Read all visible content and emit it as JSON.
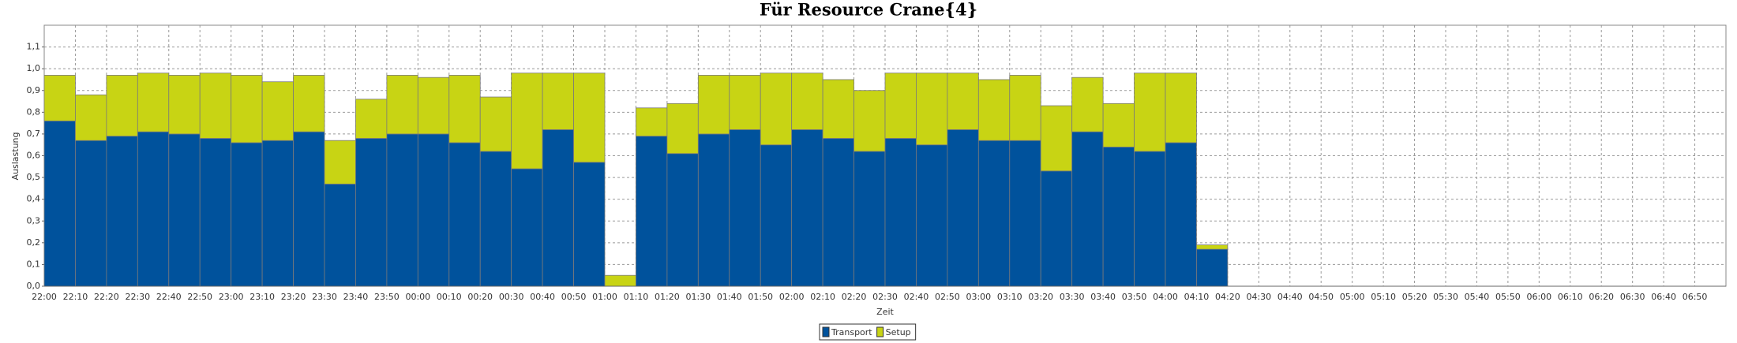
{
  "chart_data": {
    "type": "stacked_bar",
    "title": "Für Resource Crane{4}",
    "x_label": "Zeit",
    "y_label": "Auslastung",
    "categories": [
      "22:00",
      "22:10",
      "22:20",
      "22:30",
      "22:40",
      "22:50",
      "23:00",
      "23:10",
      "23:20",
      "23:30",
      "23:40",
      "23:50",
      "00:00",
      "00:10",
      "00:20",
      "00:30",
      "00:40",
      "00:50",
      "01:00",
      "01:10",
      "01:20",
      "01:30",
      "01:40",
      "01:50",
      "02:00",
      "02:10",
      "02:20",
      "02:30",
      "02:40",
      "02:50",
      "03:00",
      "03:10",
      "03:20",
      "03:30",
      "03:40",
      "03:50",
      "04:00",
      "04:10",
      "04:20",
      "04:30",
      "04:40",
      "04:50",
      "05:00",
      "05:10",
      "05:20",
      "05:30",
      "05:40",
      "05:50",
      "06:00",
      "06:10",
      "06:20",
      "06:30",
      "06:40",
      "06:50"
    ],
    "series": [
      {
        "name": "Transport",
        "color": "#00529c",
        "values": [
          0.76,
          0.67,
          0.69,
          0.71,
          0.7,
          0.68,
          0.66,
          0.67,
          0.71,
          0.47,
          0.68,
          0.7,
          0.7,
          0.66,
          0.62,
          0.54,
          0.72,
          0.57,
          0,
          0.69,
          0.61,
          0.7,
          0.72,
          0.65,
          0.72,
          0.68,
          0.62,
          0.68,
          0.65,
          0.72,
          0.67,
          0.67,
          0.53,
          0.71,
          0.64,
          0.62,
          0.66,
          0.17,
          null,
          null,
          null,
          null,
          null,
          null,
          null,
          null,
          null,
          null,
          null,
          null,
          null,
          null,
          null,
          null
        ]
      },
      {
        "name": "Setup",
        "color": "#c8d414",
        "values": [
          0.21,
          0.21,
          0.28,
          0.27,
          0.27,
          0.3,
          0.31,
          0.27,
          0.26,
          0.2,
          0.18,
          0.27,
          0.26,
          0.31,
          0.25,
          0.44,
          0.26,
          0.41,
          0.05,
          0.13,
          0.23,
          0.27,
          0.25,
          0.33,
          0.26,
          0.27,
          0.28,
          0.3,
          0.33,
          0.26,
          0.28,
          0.3,
          0.3,
          0.25,
          0.2,
          0.36,
          0.32,
          0.02,
          null,
          null,
          null,
          null,
          null,
          null,
          null,
          null,
          null,
          null,
          null,
          null,
          null,
          null,
          null,
          null
        ]
      }
    ],
    "ylim": [
      0,
      1.2
    ],
    "yticks": [
      {
        "value": 0,
        "label": "0,0"
      },
      {
        "value": 0.1,
        "label": "0,1"
      },
      {
        "value": 0.2,
        "label": "0,2"
      },
      {
        "value": 0.3,
        "label": "0,3"
      },
      {
        "value": 0.4,
        "label": "0,4"
      },
      {
        "value": 0.5,
        "label": "0,5"
      },
      {
        "value": 0.6,
        "label": "0,6"
      },
      {
        "value": 0.7,
        "label": "0,7"
      },
      {
        "value": 0.8,
        "label": "0,8"
      },
      {
        "value": 0.9,
        "label": "0,9"
      },
      {
        "value": 1.0,
        "label": "1,0"
      },
      {
        "value": 1.1,
        "label": "1,1"
      }
    ],
    "grid": true,
    "legend": "bottom"
  }
}
